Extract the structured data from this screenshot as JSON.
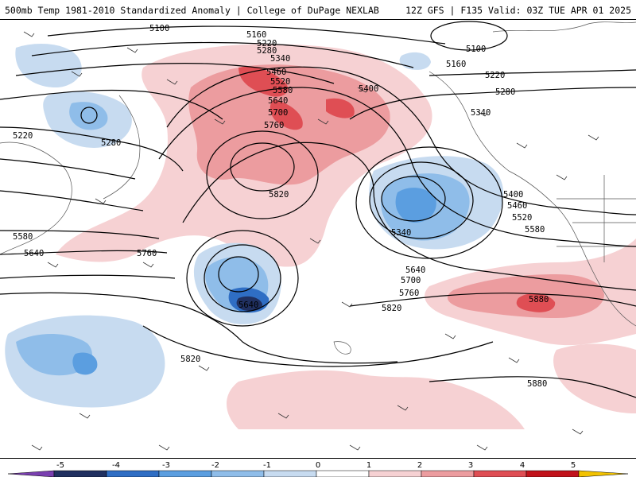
{
  "header": {
    "left": "500mb Temp 1981-2010 Standardized Anomaly | College of DuPage NEXLAB",
    "right": "12Z GFS | F135 Valid: 03Z TUE APR 01 2025"
  },
  "contour_labels": [
    "5100",
    "5160",
    "5220",
    "5280",
    "5340",
    "5460",
    "5520",
    "5580",
    "5640",
    "5700",
    "5760",
    "5820",
    "5400",
    "5220",
    "5280",
    "5100",
    "5160",
    "5220",
    "5280",
    "5340",
    "5400",
    "5460",
    "5520",
    "5580",
    "5640",
    "5700",
    "5760",
    "5820",
    "5340",
    "5580",
    "5640",
    "5760",
    "5640",
    "5820",
    "5880",
    "5880"
  ],
  "colorbar": {
    "ticks": [
      "-5",
      "-4",
      "-3",
      "-2",
      "-1",
      "0",
      "1",
      "2",
      "3",
      "4",
      "5"
    ],
    "colors": {
      "neg_extreme": "#7a3fb0",
      "neg5": "#203060",
      "neg4": "#2f6ec4",
      "neg3": "#5b9ee0",
      "neg2": "#8fbde9",
      "neg1": "#c7dbf0",
      "zero": "#ffffff",
      "pos1": "#f6d1d3",
      "pos2": "#ec9c9f",
      "pos3": "#df4e54",
      "pos4": "#c1121b",
      "pos5": "#7a0008",
      "pos_extreme": "#f2c200"
    }
  },
  "legend_accent": "#000000"
}
